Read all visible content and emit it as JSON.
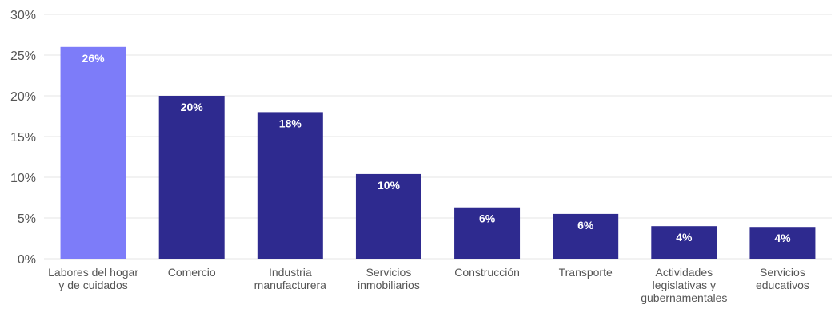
{
  "colors": {
    "highlight": "#7d7cf9",
    "primary": "#2e2a8f",
    "grid": "#e6e6e6",
    "text": "#555555",
    "data_label": "#ffffff"
  },
  "chart_data": {
    "type": "bar",
    "title": "",
    "xlabel": "",
    "ylabel": "",
    "ylim": [
      0,
      30
    ],
    "yticks": [
      0,
      5,
      10,
      15,
      20,
      25,
      30
    ],
    "ytick_labels": [
      "0%",
      "5%",
      "10%",
      "15%",
      "20%",
      "25%",
      "30%"
    ],
    "grid": true,
    "highlight_index": 0,
    "categories": [
      [
        "Labores del hogar",
        "y de cuidados"
      ],
      [
        "Comercio"
      ],
      [
        "Industria",
        "manufacturera"
      ],
      [
        "Servicios",
        "inmobiliarios"
      ],
      [
        "Construcción"
      ],
      [
        "Transporte"
      ],
      [
        "Actividades",
        "legislativas y",
        "gubernamentales"
      ],
      [
        "Servicios",
        "educativos"
      ]
    ],
    "values": [
      26,
      20,
      18,
      10.4,
      6.3,
      5.5,
      4.0,
      3.9
    ],
    "data_labels": [
      "26%",
      "20%",
      "18%",
      "10%",
      "6%",
      "6%",
      "4%",
      "4%"
    ]
  }
}
